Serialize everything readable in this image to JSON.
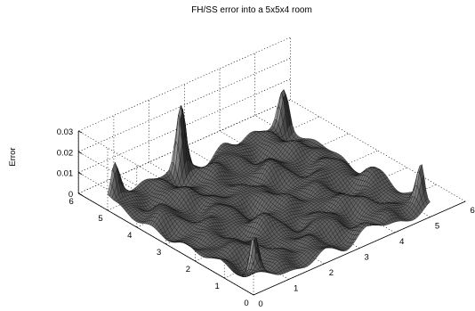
{
  "chart_data": {
    "type": "surface-3d",
    "title": "FH/SS error into a 5x5x4 room",
    "xlabel": "",
    "ylabel": "",
    "zlabel": "Error",
    "xlim": [
      0,
      6
    ],
    "ylim": [
      0,
      6
    ],
    "zlim": [
      0,
      0.03
    ],
    "xticks": [
      "0",
      "1",
      "2",
      "3",
      "4",
      "5",
      "6"
    ],
    "yticks": [
      "0",
      "1",
      "2",
      "3",
      "4",
      "5",
      "6"
    ],
    "zticks": [
      "0",
      "0.01",
      "0.02",
      "0.03"
    ],
    "surface_domain": {
      "x": [
        0,
        5
      ],
      "y": [
        0,
        5
      ]
    },
    "grid": true,
    "peaks": [
      {
        "x": 2.0,
        "y": 4.9,
        "error": 0.037
      },
      {
        "x": 0.1,
        "y": 0.1,
        "error": 0.023
      },
      {
        "x": 4.9,
        "y": 4.9,
        "error": 0.022
      },
      {
        "x": 0.2,
        "y": 5.0,
        "error": 0.018
      },
      {
        "x": 5.0,
        "y": 0.3,
        "error": 0.021
      }
    ],
    "baseline_error": 0.005,
    "colors": {
      "surface": "#5a5a5a",
      "mesh": "#000000",
      "background": "#ffffff"
    }
  }
}
